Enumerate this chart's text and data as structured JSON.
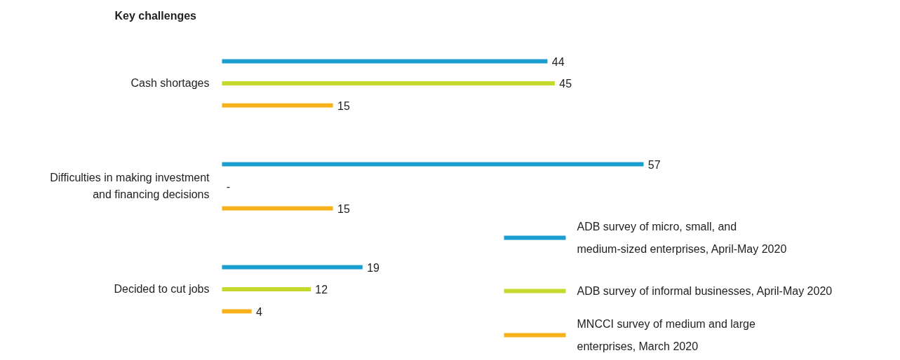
{
  "chart_data": {
    "type": "bar",
    "orientation": "horizontal",
    "title": "Key challenges",
    "categories": [
      "Cash shortages",
      "Difficulties in making investment and financing decisions",
      "Decided to cut jobs"
    ],
    "series": [
      {
        "name": "ADB survey of micro, small, and medium-sized enterprises, April-May 2020",
        "color": "#1a9ed0",
        "values": [
          44,
          57,
          19
        ],
        "value_labels": [
          "44",
          "57",
          "19"
        ]
      },
      {
        "name": "ADB survey of informal businesses, April-May 2020",
        "color": "#c5d92d",
        "values": [
          45,
          null,
          12
        ],
        "value_labels": [
          "45",
          "-",
          "12"
        ]
      },
      {
        "name": "MNCCI survey of medium and large enterprises, March 2020",
        "color": "#f6b11a",
        "values": [
          15,
          15,
          4
        ],
        "value_labels": [
          "15",
          "15",
          "4"
        ]
      }
    ],
    "legend": "bottom right"
  }
}
